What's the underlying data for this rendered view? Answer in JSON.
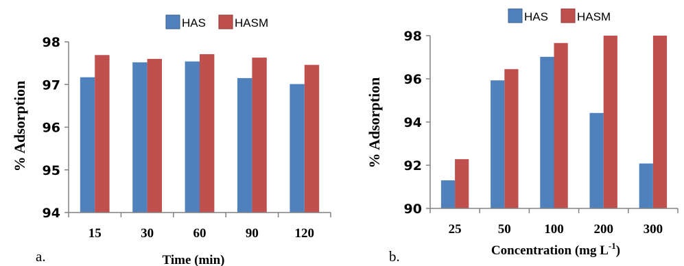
{
  "chart_data": [
    {
      "type": "bar",
      "panel_label": "a.",
      "categories": [
        "15",
        "30",
        "60",
        "90",
        "120"
      ],
      "series": [
        {
          "name": "HAS",
          "color": "#4f81bd",
          "values": [
            97.17,
            97.52,
            97.54,
            97.15,
            97.01
          ]
        },
        {
          "name": "HASM",
          "color": "#c0504d",
          "values": [
            97.69,
            97.6,
            97.71,
            97.63,
            97.46
          ]
        }
      ],
      "title": "",
      "xlabel": "Time (min)",
      "ylabel": "% Adsorption",
      "ylim": [
        94,
        98
      ],
      "yticks": [
        "94",
        "95",
        "96",
        "97",
        "98"
      ],
      "grid": false,
      "legend": "top"
    },
    {
      "type": "bar",
      "panel_label": "b.",
      "categories": [
        "25",
        "50",
        "100",
        "200",
        "300"
      ],
      "series": [
        {
          "name": "HAS",
          "color": "#4f81bd",
          "values": [
            91.3,
            95.93,
            97.02,
            94.42,
            92.08
          ]
        },
        {
          "name": "HASM",
          "color": "#c0504d",
          "values": [
            92.28,
            96.45,
            97.66,
            98.0,
            98.0
          ]
        }
      ],
      "title": "",
      "xlabel": "Concentration (mg L",
      "xlabel_sup": "-1",
      "xlabel_end": ")",
      "ylabel": "% Adsorption",
      "ylim": [
        90,
        98
      ],
      "yticks": [
        "90",
        "92",
        "94",
        "96",
        "98"
      ],
      "grid": false,
      "legend": "top"
    }
  ]
}
